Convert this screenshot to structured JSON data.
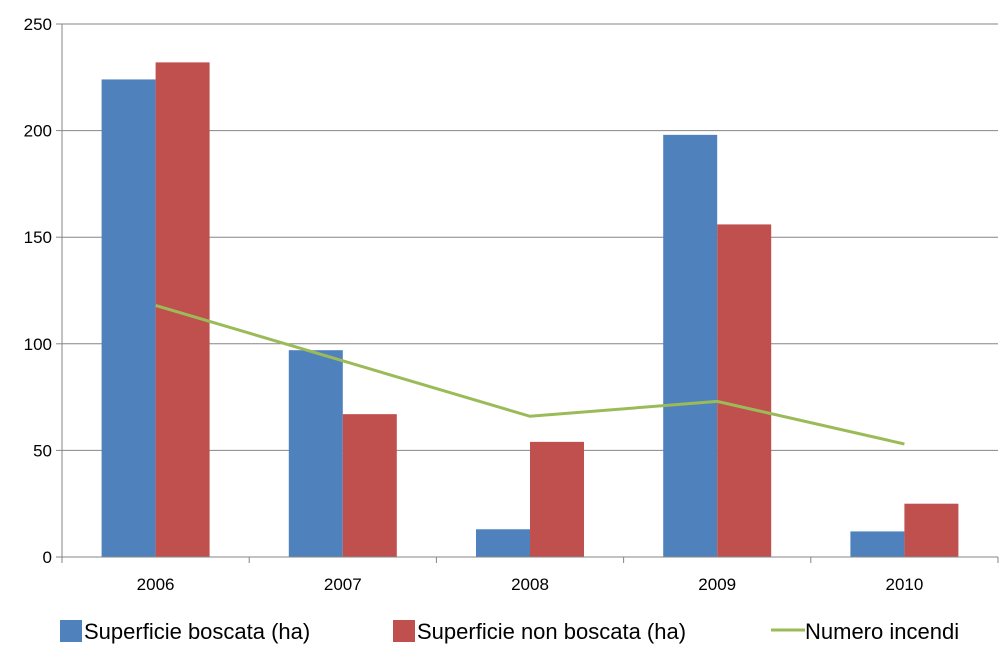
{
  "chart_data": {
    "type": "bar",
    "categories": [
      "2006",
      "2007",
      "2008",
      "2009",
      "2010"
    ],
    "ylim": [
      0,
      250
    ],
    "yticks": [
      0,
      50,
      100,
      150,
      200,
      250
    ],
    "grid": true,
    "legend_position": "bottom",
    "series": [
      {
        "name": "Superficie boscata (ha)",
        "type": "bar",
        "color": "#4F81BD",
        "values": [
          224,
          97,
          13,
          198,
          12
        ]
      },
      {
        "name": "Superficie non boscata (ha)",
        "type": "bar",
        "color": "#C0504D",
        "values": [
          232,
          67,
          54,
          156,
          25
        ]
      },
      {
        "name": "Numero incendi",
        "type": "line",
        "color": "#9BBB59",
        "values": [
          118,
          92,
          66,
          73,
          53
        ]
      }
    ]
  }
}
